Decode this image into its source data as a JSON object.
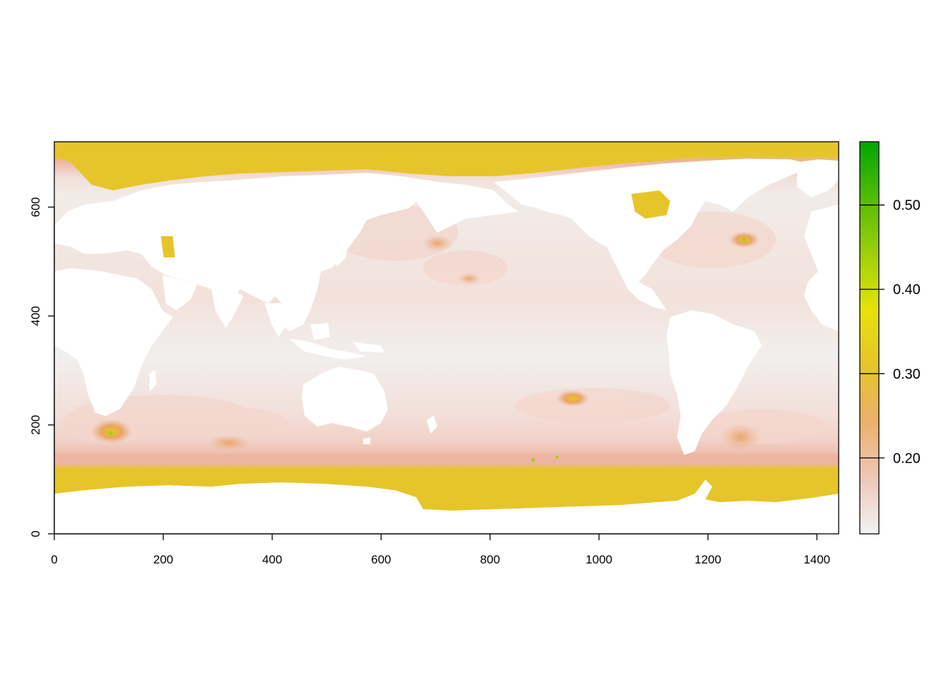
{
  "chart_data": {
    "type": "heatmap",
    "title": "",
    "xlabel": "",
    "ylabel": "",
    "xlim": [
      0,
      1440
    ],
    "ylim": [
      0,
      720
    ],
    "x_ticks": [
      {
        "value": 0,
        "label": "0"
      },
      {
        "value": 200,
        "label": "200"
      },
      {
        "value": 400,
        "label": "400"
      },
      {
        "value": 600,
        "label": "600"
      },
      {
        "value": 800,
        "label": "800"
      },
      {
        "value": 1000,
        "label": "1000"
      },
      {
        "value": 1200,
        "label": "1200"
      },
      {
        "value": 1400,
        "label": "1400"
      }
    ],
    "y_ticks": [
      {
        "value": 0,
        "label": "0"
      },
      {
        "value": 200,
        "label": "200"
      },
      {
        "value": 400,
        "label": "400"
      },
      {
        "value": 600,
        "label": "600"
      }
    ],
    "colorbar": {
      "range": [
        0.11,
        0.575
      ],
      "ticks": [
        {
          "value": 0.2,
          "label": "0.20"
        },
        {
          "value": 0.3,
          "label": "0.30"
        },
        {
          "value": 0.4,
          "label": "0.40"
        },
        {
          "value": 0.5,
          "label": "0.50"
        }
      ],
      "stops": [
        "#f2f2f2",
        "#eec7b8",
        "#ebb06a",
        "#e6c52a",
        "#e6e20a",
        "#9ed00a",
        "#53bc04",
        "#00a600"
      ]
    },
    "grid": false,
    "colors": {
      "ocean_base": "#f1efee",
      "ocean_mid": "#f3dcd6",
      "band": "#eeb4a2",
      "polar": "#e6c52a",
      "hotspot": "#e8a662",
      "peak": "#9ed00a",
      "land": "#ffffff"
    }
  }
}
